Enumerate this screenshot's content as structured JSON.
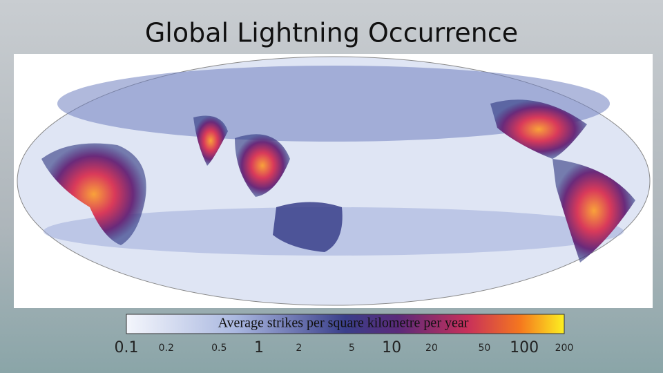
{
  "title": "Global Lightning Occurrence",
  "legend": {
    "label": "Average strikes per square kilometre per year",
    "range": [
      0.1,
      200
    ],
    "scale": "log",
    "ticks": [
      0.1,
      0.2,
      0.5,
      1,
      2,
      5,
      10,
      20,
      50,
      100,
      200
    ]
  }
}
